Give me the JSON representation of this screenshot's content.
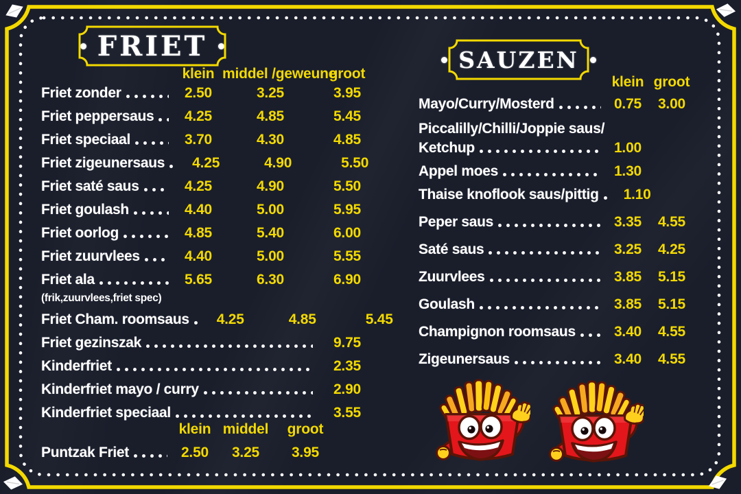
{
  "board": {
    "background": "#1a1e2b",
    "accent_yellow": "#f3d900",
    "chalk_white": "#ffffff",
    "mascot_red": "#e3161c"
  },
  "friet": {
    "title": "FRIET",
    "columns": [
      "klein",
      "middel /geweune",
      "groot"
    ],
    "items": [
      {
        "label": "Friet zonder",
        "prices": [
          "2.50",
          "3.25",
          "3.95"
        ]
      },
      {
        "label": "Friet peppersaus",
        "prices": [
          "4.25",
          "4.85",
          "5.45"
        ]
      },
      {
        "label": "Friet speciaal",
        "prices": [
          "3.70",
          "4.30",
          "4.85"
        ]
      },
      {
        "label": "Friet zigeunersaus",
        "prices": [
          "4.25",
          "4.90",
          "5.50"
        ]
      },
      {
        "label": "Friet saté saus",
        "prices": [
          "4.25",
          "4.90",
          "5.50"
        ]
      },
      {
        "label": "Friet goulash",
        "prices": [
          "4.40",
          "5.00",
          "5.95"
        ]
      },
      {
        "label": "Friet oorlog",
        "prices": [
          "4.85",
          "5.40",
          "6.00"
        ]
      },
      {
        "label": "Friet zuurvlees",
        "prices": [
          "4.40",
          "5.00",
          "5.55"
        ]
      },
      {
        "label": "Friet ala",
        "prices": [
          "5.65",
          "6.30",
          "6.90"
        ],
        "sub": "(frik,zuurvlees,friet spec)"
      },
      {
        "label": "Friet Cham. roomsaus",
        "prices": [
          "4.25",
          "4.85",
          "5.45"
        ]
      },
      {
        "label": "Friet gezinszak",
        "price": "9.75"
      },
      {
        "label": "Kinderfriet",
        "price": "2.35"
      },
      {
        "label": "Kinderfriet mayo / curry",
        "price": "2.90"
      },
      {
        "label": "Kinderfriet speciaal",
        "price": "3.55"
      }
    ],
    "sub_columns": [
      "klein",
      "middel",
      "groot"
    ],
    "puntzak_items": [
      {
        "label": "Puntzak Friet",
        "prices": [
          "2.50",
          "3.25",
          "3.95"
        ]
      }
    ]
  },
  "sauzen": {
    "title": "SAUZEN",
    "columns": [
      "klein",
      "groot"
    ],
    "items": [
      {
        "label": "Mayo/Curry/Mosterd",
        "prices": [
          "0.75",
          "3.00"
        ]
      },
      {
        "pre": "Piccalilly/Chilli/Joppie saus/",
        "label": "Ketchup",
        "prices": [
          "1.00",
          ""
        ]
      },
      {
        "label": "Appel moes",
        "prices": [
          "1.30",
          ""
        ]
      },
      {
        "label": "Thaise knoflook saus/pittig",
        "prices": [
          "1.10",
          ""
        ]
      },
      {
        "label": "Peper saus",
        "prices": [
          "3.35",
          "4.55"
        ]
      },
      {
        "label": "Saté saus",
        "prices": [
          "3.25",
          "4.25"
        ]
      },
      {
        "label": "Zuurvlees",
        "prices": [
          "3.85",
          "5.15"
        ]
      },
      {
        "label": "Goulash",
        "prices": [
          "3.85",
          "5.15"
        ]
      },
      {
        "label": "Champignon roomsaus",
        "prices": [
          "3.40",
          "4.55"
        ]
      },
      {
        "label": "Zigeunersaus",
        "prices": [
          "3.40",
          "4.55"
        ]
      }
    ]
  },
  "mascots": {
    "left": "fries-mascot-icon",
    "right": "fries-mascot-icon"
  }
}
